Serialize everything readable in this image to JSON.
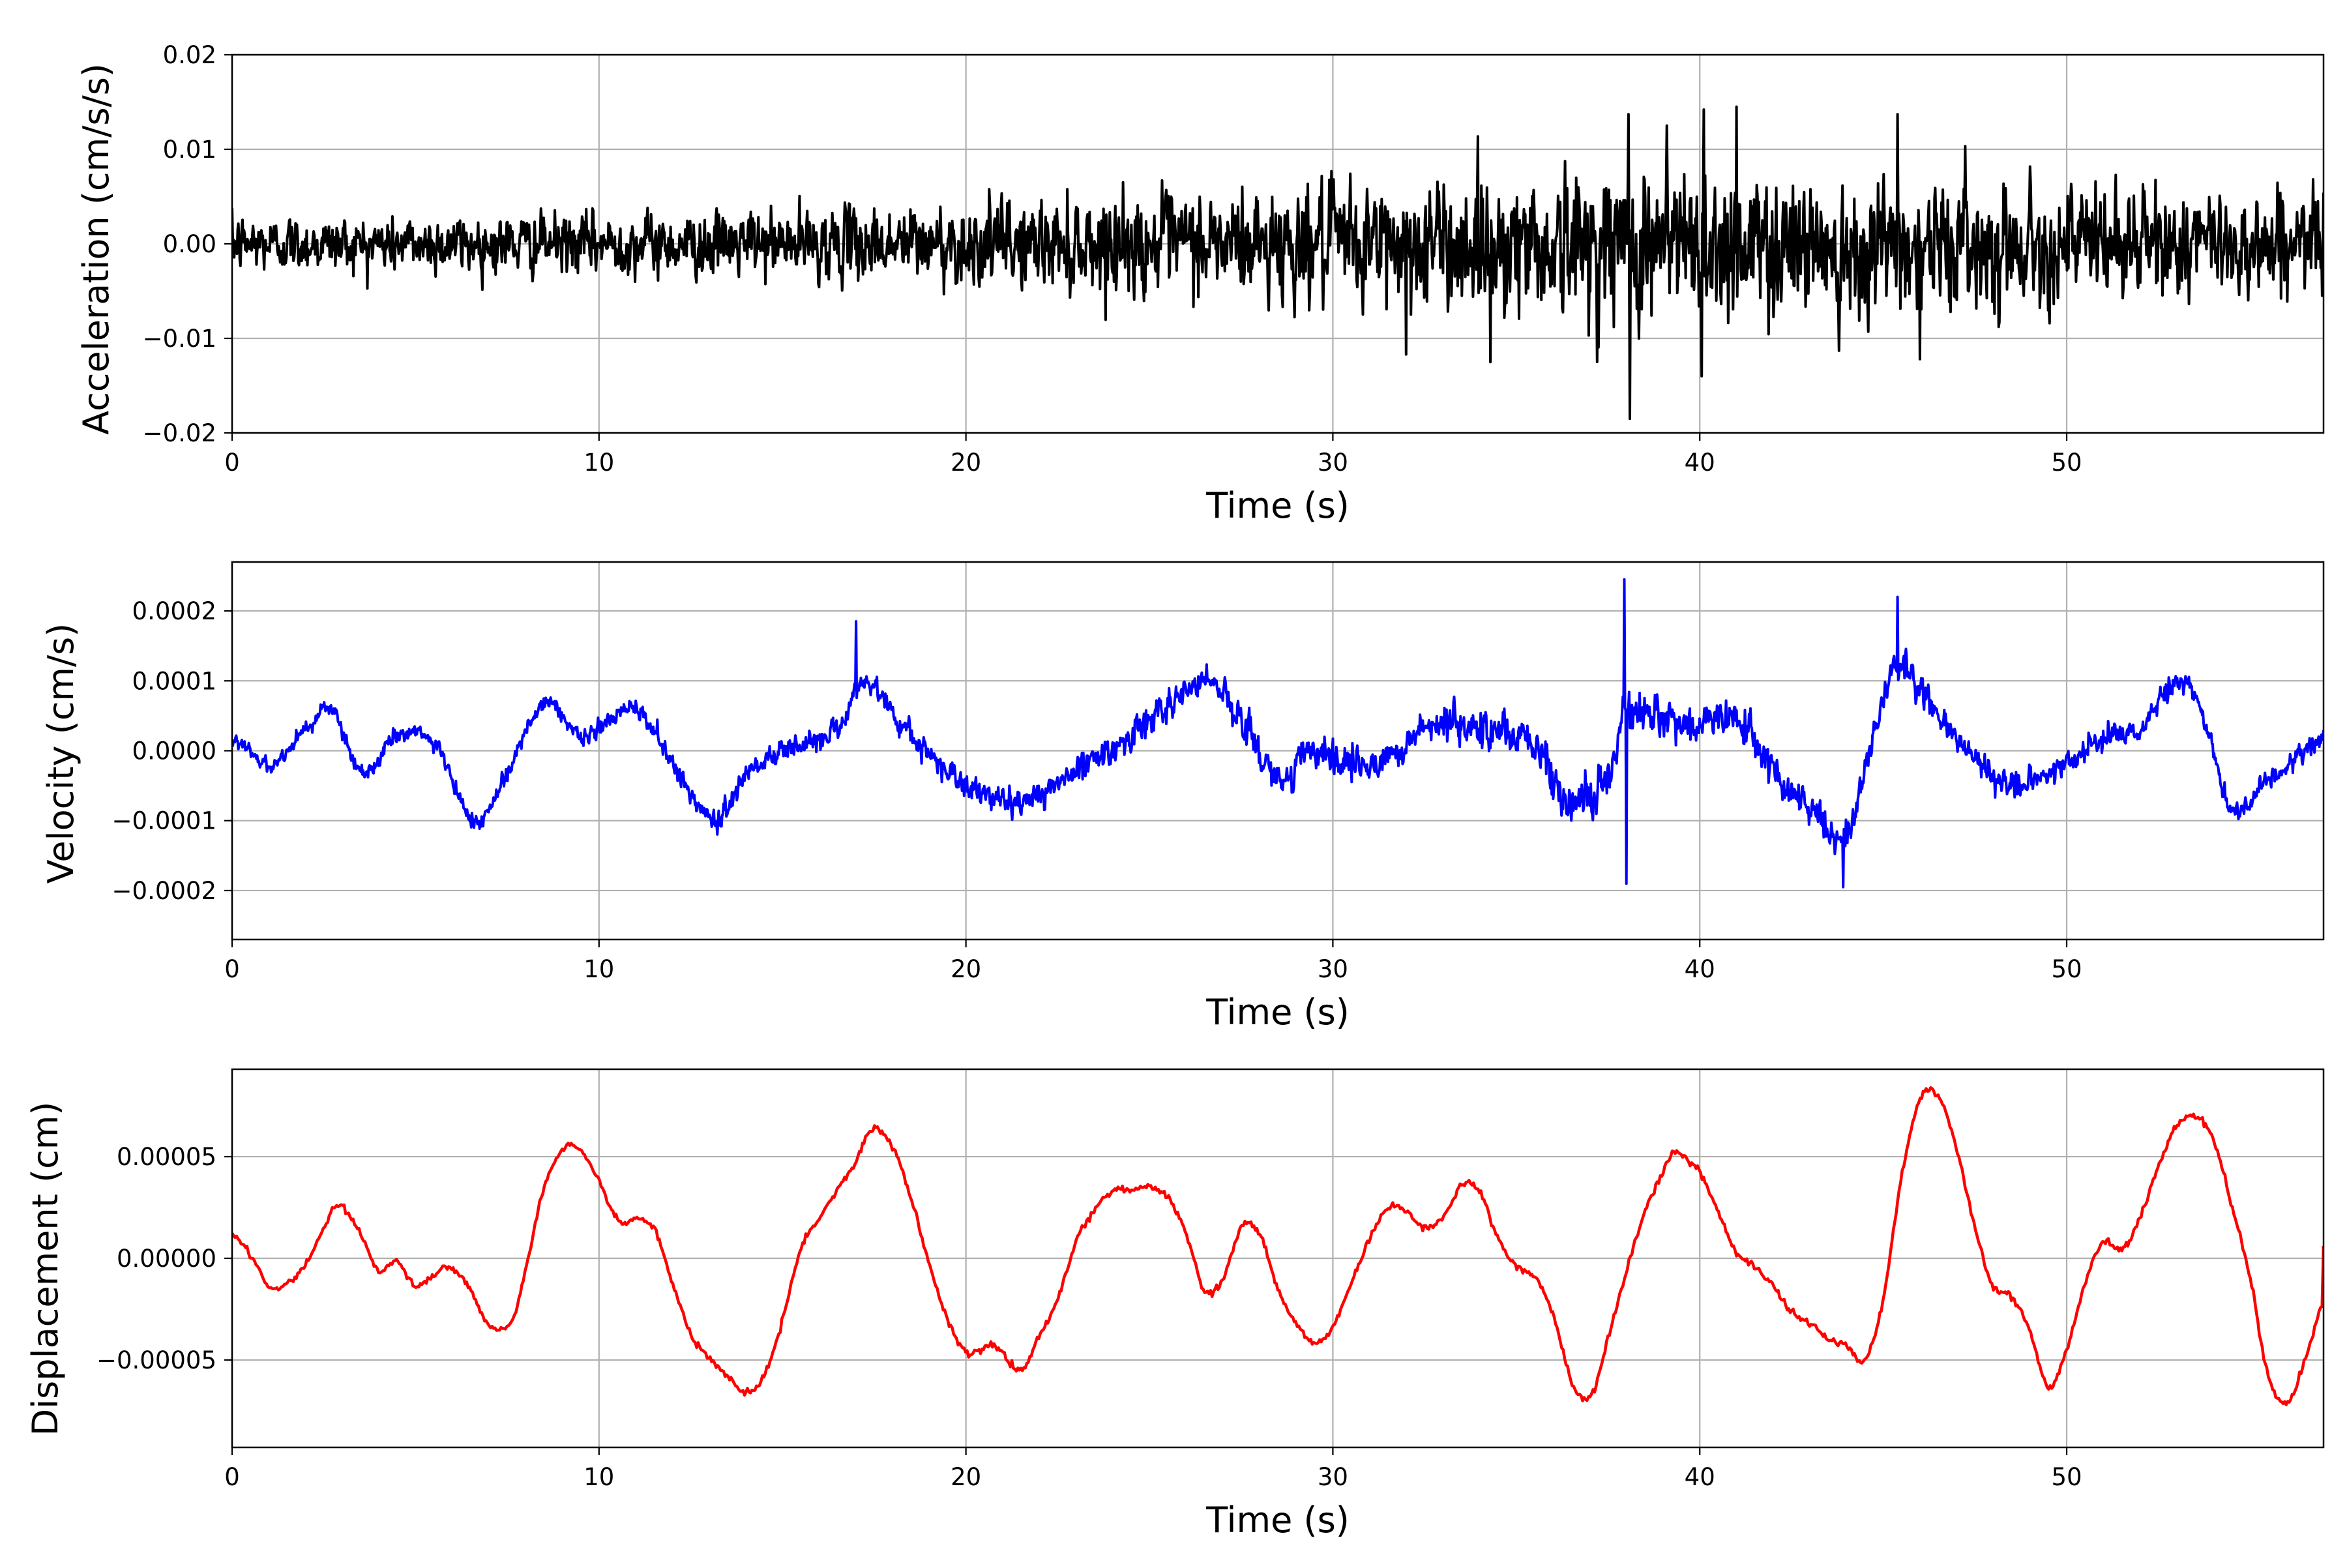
{
  "chart_data": [
    {
      "type": "line",
      "title": "",
      "xlabel": "Time (s)",
      "ylabel": "Acceleration (cm/s/s)",
      "xlim": [
        0,
        57
      ],
      "ylim": [
        -0.02,
        0.02
      ],
      "xticks": [
        0,
        10,
        20,
        30,
        40,
        50
      ],
      "xtick_labels": [
        "0",
        "10",
        "20",
        "30",
        "40",
        "50"
      ],
      "yticks": [
        -0.02,
        -0.01,
        0.0,
        0.01,
        0.02
      ],
      "ytick_labels": [
        "−0.02",
        "−0.01",
        "0.00",
        "0.01",
        "0.02"
      ],
      "grid": true,
      "color": "#000000",
      "series": [
        {
          "envelope_t": [
            0,
            5,
            10,
            15,
            20,
            25,
            30,
            33,
            36,
            38,
            40,
            42,
            45,
            50,
            57
          ],
          "envelope_amp": [
            0.0045,
            0.0045,
            0.0048,
            0.0053,
            0.0065,
            0.008,
            0.0095,
            0.0105,
            0.0115,
            0.013,
            0.013,
            0.0115,
            0.0105,
            0.009,
            0.008
          ],
          "peaks_t": [
            38.05,
            38.1,
            39.1,
            40.1,
            40.05,
            41.0,
            45.4,
            46.0,
            43.8,
            32.0,
            34.3
          ],
          "peaks_y": [
            0.0137,
            -0.0185,
            0.0125,
            0.0142,
            -0.014,
            0.0145,
            0.0137,
            -0.0122,
            -0.0113,
            -0.0117,
            -0.0125
          ]
        }
      ]
    },
    {
      "type": "line",
      "title": "",
      "xlabel": "Time (s)",
      "ylabel": "Velocity (cm/s)",
      "xlim": [
        0,
        57
      ],
      "ylim": [
        -0.00027,
        0.00027
      ],
      "xticks": [
        0,
        10,
        20,
        30,
        40,
        50
      ],
      "xtick_labels": [
        "0",
        "10",
        "20",
        "30",
        "40",
        "50"
      ],
      "yticks": [
        -0.0002,
        -0.0001,
        0.0,
        0.0001,
        0.0002
      ],
      "ytick_labels": [
        "−0.0002",
        "−0.0001",
        "0.0000",
        "0.0001",
        "0.0002"
      ],
      "grid": true,
      "color": "#0000ff",
      "series": [
        {
          "trend_t": [
            0,
            1,
            2,
            2.7,
            3.5,
            4.5,
            5.5,
            6.6,
            7.5,
            8.5,
            9.5,
            11,
            12,
            13.2,
            14,
            15.5,
            16.5,
            17.2,
            18,
            19.3,
            20.3,
            21.5,
            23,
            24.5,
            25.5,
            26.6,
            27.5,
            28.5,
            29.5,
            31,
            32.5,
            34,
            35.5,
            36.6,
            37.5,
            38,
            39.5,
            41,
            42,
            43,
            44,
            45,
            45.5,
            46.5,
            47.5,
            48.5,
            50,
            51,
            52,
            52.8,
            53.5,
            54.5,
            55.5,
            57
          ],
          "trend_v": [
            2e-05,
            -2e-05,
            3e-05,
            6e-05,
            -3e-05,
            2e-05,
            1e-05,
            -0.0001,
            -3e-05,
            7e-05,
            2e-05,
            6e-05,
            -2e-05,
            -0.0001,
            -3e-05,
            1e-05,
            3e-05,
            0.0001,
            5e-05,
            -2e-05,
            -6e-05,
            -7e-05,
            -3e-05,
            2e-05,
            6e-05,
            0.0001,
            5e-05,
            -4e-05,
            0.0,
            -2e-05,
            3e-05,
            4e-05,
            1e-05,
            -8e-05,
            -3e-05,
            5e-05,
            4e-05,
            5e-05,
            -3e-05,
            -8e-05,
            -0.00012,
            7e-05,
            0.00012,
            5e-05,
            -1e-05,
            -5e-05,
            -2e-05,
            2e-05,
            3e-05,
            9e-05,
            8e-05,
            -8e-05,
            -4e-05,
            2e-05
          ],
          "noise_t": [
            0,
            10,
            20,
            25,
            30,
            35,
            38,
            40,
            44,
            50,
            57
          ],
          "noise_amp": [
            1.8e-05,
            2.2e-05,
            3e-05,
            3.8e-05,
            4.5e-05,
            4.8e-05,
            5.5e-05,
            5e-05,
            4e-05,
            3e-05,
            2.5e-05
          ],
          "peaks_t": [
            37.95,
            38.0,
            17.0,
            45.4,
            43.9
          ],
          "peaks_v": [
            0.000245,
            -0.00019,
            0.000185,
            0.00022,
            -0.000195
          ]
        }
      ]
    },
    {
      "type": "line",
      "title": "",
      "xlabel": "Time (s)",
      "ylabel": "Displacement (cm)",
      "xlim": [
        0,
        57
      ],
      "ylim": [
        -9.3e-05,
        9.3e-05
      ],
      "xticks": [
        0,
        10,
        20,
        30,
        40,
        50
      ],
      "xtick_labels": [
        "0",
        "10",
        "20",
        "30",
        "40",
        "50"
      ],
      "yticks": [
        -5e-05,
        0.0,
        5e-05
      ],
      "ytick_labels": [
        "−0.00005",
        "0.00000",
        "0.00005"
      ],
      "grid": true,
      "color": "#ff0000",
      "series": [
        {
          "t": [
            0,
            0.5,
            1.0,
            1.5,
            2.0,
            2.5,
            2.9,
            3.5,
            4.0,
            4.5,
            5.0,
            5.5,
            6.0,
            6.5,
            7.0,
            7.6,
            8.0,
            8.5,
            9.0,
            9.4,
            10.0,
            10.5,
            11.0,
            11.5,
            12.0,
            12.5,
            13.0,
            13.5,
            14.0,
            14.5,
            15.0,
            15.5,
            16.0,
            16.5,
            17.0,
            17.4,
            18.0,
            18.5,
            19.0,
            19.5,
            20.0,
            20.3,
            20.8,
            21.5,
            22.0,
            22.5,
            23.0,
            23.5,
            24.0,
            24.5,
            25.0,
            25.5,
            26.0,
            26.5,
            27.0,
            27.5,
            28.0,
            28.5,
            29.0,
            29.5,
            30.0,
            30.5,
            31.0,
            31.5,
            32.0,
            32.5,
            33.0,
            33.5,
            34.0,
            34.5,
            35.0,
            35.5,
            36.0,
            36.5,
            37.0,
            37.5,
            38.0,
            38.5,
            39.0,
            39.3,
            40.0,
            40.5,
            41.0,
            41.5,
            42.0,
            42.5,
            43.0,
            43.5,
            44.0,
            44.5,
            45.0,
            45.5,
            46.0,
            46.5,
            47.0,
            47.5,
            48.0,
            48.5,
            49.0,
            49.5,
            50.0,
            50.5,
            51.0,
            51.5,
            52.0,
            52.5,
            53.0,
            53.5,
            54.0,
            54.5,
            55.0,
            55.5,
            56.0,
            56.5,
            57.0
          ],
          "d": [
            1.2e-05,
            2e-06,
            -1.4e-05,
            -1.2e-05,
            -3e-06,
            1.5e-05,
            2.6e-05,
            1.2e-05,
            -6e-06,
            -1e-06,
            -1.4e-05,
            -8e-06,
            -5e-06,
            -1.6e-05,
            -3.3e-05,
            -3.2e-05,
            -5e-06,
            3.5e-05,
            5.3e-05,
            5.5e-05,
            3.8e-05,
            1.9e-05,
            1.9e-05,
            1.5e-05,
            -1.2e-05,
            -3.7e-05,
            -4.9e-05,
            -5.8e-05,
            -6.6e-05,
            -5.8e-05,
            -3e-05,
            5e-06,
            2e-05,
            3.4e-05,
            4.7e-05,
            6.4e-05,
            5.5e-05,
            3e-05,
            -3e-06,
            -3e-05,
            -4.6e-05,
            -4.6e-05,
            -4.3e-05,
            -5.5e-05,
            -3.8e-05,
            -2e-05,
            8e-06,
            2.4e-05,
            3.3e-05,
            3.4e-05,
            3.5e-05,
            3e-05,
            1.2e-05,
            -1.6e-05,
            -1e-05,
            1.5e-05,
            1.2e-05,
            -1.5e-05,
            -3.2e-05,
            -4.2e-05,
            -3.4e-05,
            -1.2e-05,
            1e-05,
            2.5e-05,
            2.3e-05,
            1.5e-05,
            2e-05,
            3.6e-05,
            3.3e-05,
            1e-05,
            -4e-06,
            -9e-06,
            -2.8e-05,
            -6e-05,
            -6.8e-05,
            -4e-05,
            -6e-06,
            2.2e-05,
            4.2e-05,
            5.2e-05,
            4.2e-05,
            2.3e-05,
            3e-06,
            -4e-06,
            -1.4e-05,
            -2.6e-05,
            -3.2e-05,
            -4e-05,
            -4.3e-05,
            -5e-05,
            -2e-05,
            4e-05,
            7.8e-05,
            8e-05,
            5.4e-05,
            1.5e-05,
            -1.4e-05,
            -1.9e-05,
            -3.6e-05,
            -6.3e-05,
            -4.5e-05,
            -1.2e-05,
            8e-06,
            4e-06,
            2e-05,
            4.5e-05,
            6.5e-05,
            7e-05,
            5.8e-05,
            2.6e-05,
            -1e-05,
            -5.8e-05,
            -7.1e-05,
            -5e-05,
            -2.2e-05,
            -3e-06,
            6e-06
          ]
        }
      ]
    }
  ]
}
